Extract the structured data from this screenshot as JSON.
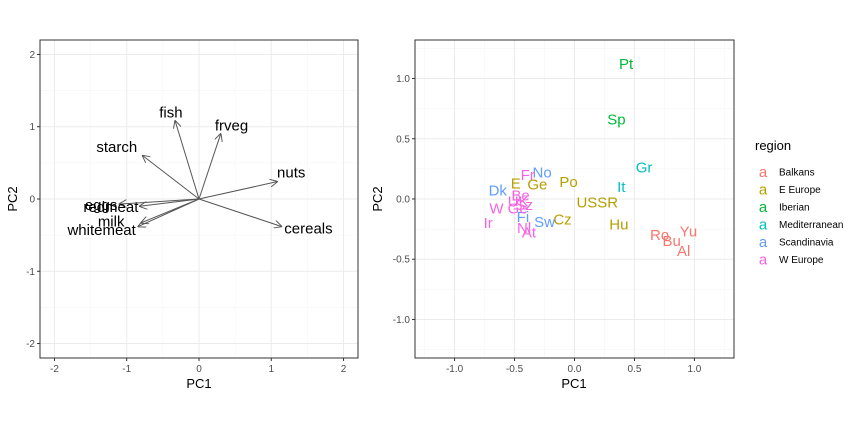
{
  "chart_data": [
    {
      "type": "biplot-loadings",
      "xlabel": "PC1",
      "ylabel": "PC2",
      "xlim": [
        -2.2,
        2.2
      ],
      "ylim": [
        -2.2,
        2.2
      ],
      "xticks": [
        -2,
        -1,
        0,
        1,
        2
      ],
      "yticks": [
        -2,
        -1,
        0,
        1,
        2
      ],
      "xtick_labels": [
        "-2",
        "-1",
        "0",
        "1",
        "2"
      ],
      "ytick_labels": [
        "-2",
        "-1",
        "0",
        "1",
        "2"
      ],
      "grid": true,
      "arrows": [
        {
          "label": "fish",
          "x": -0.33,
          "y": 1.08,
          "label_x": -0.55,
          "label_y": 1.13
        },
        {
          "label": "frveg",
          "x": 0.3,
          "y": 0.9,
          "label_x": 0.22,
          "label_y": 0.95
        },
        {
          "label": "starch",
          "x": -0.78,
          "y": 0.6,
          "label_x": -1.42,
          "label_y": 0.65
        },
        {
          "label": "nuts",
          "x": 1.08,
          "y": 0.24,
          "label_x": 1.08,
          "label_y": 0.3
        },
        {
          "label": "eggs",
          "x": -1.1,
          "y": -0.07,
          "label_x": -1.58,
          "label_y": -0.15
        },
        {
          "label": "redmeat",
          "x": -0.82,
          "y": -0.1,
          "label_x": -1.6,
          "label_y": -0.18
        },
        {
          "label": "milk",
          "x": -0.8,
          "y": -0.33,
          "label_x": -1.4,
          "label_y": -0.38
        },
        {
          "label": "whitemeat",
          "x": -0.84,
          "y": -0.38,
          "label_x": -1.82,
          "label_y": -0.5
        },
        {
          "label": "cereals",
          "x": 1.14,
          "y": -0.38,
          "label_x": 1.18,
          "label_y": -0.48
        }
      ]
    },
    {
      "type": "scatter",
      "xlabel": "PC1",
      "ylabel": "PC2",
      "xlim": [
        -1.33,
        1.33
      ],
      "ylim": [
        -1.32,
        1.32
      ],
      "xticks": [
        -1.0,
        -0.5,
        0.0,
        0.5,
        1.0
      ],
      "yticks": [
        -1.0,
        -0.5,
        0.0,
        0.5,
        1.0
      ],
      "xtick_labels": [
        "-1.0",
        "-0.5",
        "0.0",
        "0.5",
        "1.0"
      ],
      "ytick_labels": [
        "-1.0",
        "-0.5",
        "0.0",
        "0.5",
        "1.0"
      ],
      "grid": true,
      "legend_title": "region",
      "legend_placement": "right",
      "legend_key_glyph": "a",
      "regions": [
        {
          "name": "Balkans",
          "color": "#F8766D"
        },
        {
          "name": "E Europe",
          "color": "#B79F00"
        },
        {
          "name": "Iberian",
          "color": "#00BA38"
        },
        {
          "name": "Mediterranean",
          "color": "#00BFC4"
        },
        {
          "name": "Scandinavia",
          "color": "#619CFF"
        },
        {
          "name": "W Europe",
          "color": "#F564E3"
        }
      ],
      "points": [
        {
          "label": "Pt",
          "x": 0.43,
          "y": 1.12,
          "region": "Iberian"
        },
        {
          "label": "Sp",
          "x": 0.35,
          "y": 0.66,
          "region": "Iberian"
        },
        {
          "label": "Gr",
          "x": 0.58,
          "y": 0.26,
          "region": "Mediterranean"
        },
        {
          "label": "It",
          "x": 0.39,
          "y": 0.1,
          "region": "Mediterranean"
        },
        {
          "label": "Yu",
          "x": 0.95,
          "y": -0.27,
          "region": "Balkans"
        },
        {
          "label": "Ro",
          "x": 0.71,
          "y": -0.3,
          "region": "Balkans"
        },
        {
          "label": "Bu",
          "x": 0.81,
          "y": -0.35,
          "region": "Balkans"
        },
        {
          "label": "Al",
          "x": 0.91,
          "y": -0.43,
          "region": "Balkans"
        },
        {
          "label": "Po",
          "x": -0.05,
          "y": 0.14,
          "region": "E Europe"
        },
        {
          "label": "Ge",
          "x": -0.31,
          "y": 0.12,
          "region": "E Europe"
        },
        {
          "label": "E",
          "x": -0.49,
          "y": 0.13,
          "region": "E Europe"
        },
        {
          "label": "USSR",
          "x": 0.19,
          "y": -0.03,
          "region": "E Europe"
        },
        {
          "label": "Cz",
          "x": -0.1,
          "y": -0.17,
          "region": "E Europe"
        },
        {
          "label": "Hu",
          "x": 0.37,
          "y": -0.21,
          "region": "E Europe"
        },
        {
          "label": "No",
          "x": -0.27,
          "y": 0.22,
          "region": "Scandinavia"
        },
        {
          "label": "Dk",
          "x": -0.64,
          "y": 0.07,
          "region": "Scandinavia"
        },
        {
          "label": "Fi",
          "x": -0.43,
          "y": -0.15,
          "region": "Scandinavia"
        },
        {
          "label": "Sw",
          "x": -0.25,
          "y": -0.19,
          "region": "Scandinavia"
        },
        {
          "label": "Fr",
          "x": -0.39,
          "y": 0.2,
          "region": "W Europe"
        },
        {
          "label": "Be",
          "x": -0.45,
          "y": 0.03,
          "region": "W Europe"
        },
        {
          "label": "Ir",
          "x": -0.72,
          "y": -0.2,
          "region": "W Europe"
        },
        {
          "label": "W Ge",
          "x": -0.55,
          "y": -0.08,
          "region": "W Europe"
        },
        {
          "label": "UK",
          "x": -0.47,
          "y": -0.02,
          "region": "W Europe"
        },
        {
          "label": "Sz",
          "x": -0.42,
          "y": -0.05,
          "region": "W Europe"
        },
        {
          "label": "Nl",
          "x": -0.42,
          "y": -0.24,
          "region": "W Europe"
        },
        {
          "label": "At",
          "x": -0.38,
          "y": -0.28,
          "region": "W Europe"
        }
      ]
    }
  ]
}
